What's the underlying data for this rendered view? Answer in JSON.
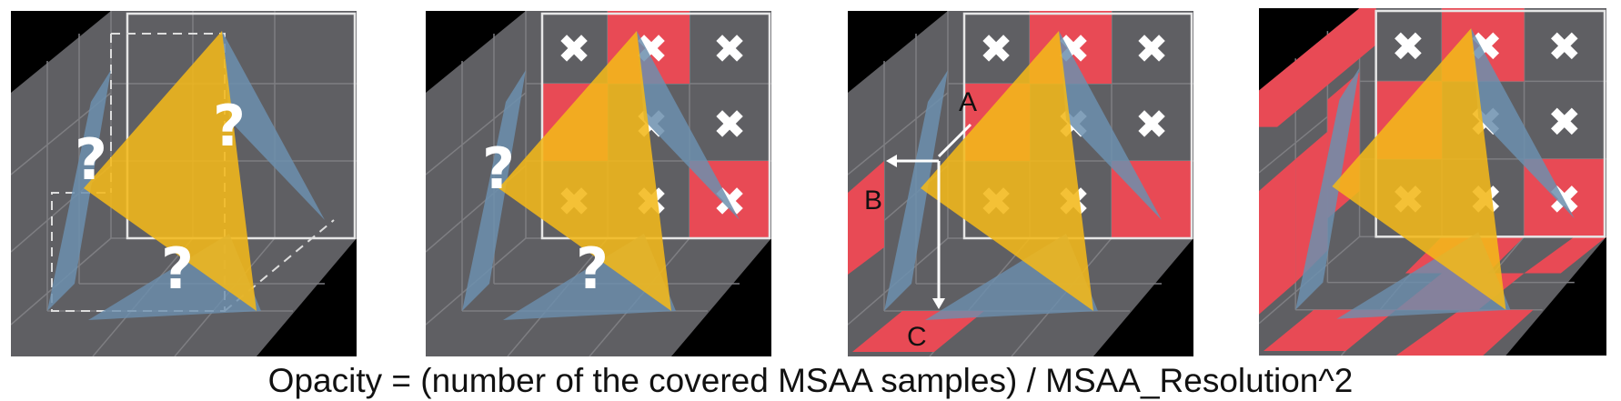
{
  "caption": "Opacity = (number of the covered MSAA samples) / MSAA_Resolution^2",
  "panels": [
    {
      "id": "panel-1",
      "question_marks": [
        "?",
        "?",
        "?"
      ]
    },
    {
      "id": "panel-2",
      "question_marks": [
        "?",
        "?"
      ]
    },
    {
      "id": "panel-3",
      "labels": {
        "a": "A",
        "b": "B",
        "c": "C"
      }
    },
    {
      "id": "panel-4"
    }
  ],
  "colors": {
    "background": "#000000",
    "voxel_gray": "#5f5f63",
    "grid_line": "#8a8a8a",
    "frame_line": "#e6e6e6",
    "covered_red": "#e84a55",
    "triangle_yellow": "#f2b81a",
    "plane_blue": "#6c8fae",
    "cross_white": "#ffffff"
  }
}
